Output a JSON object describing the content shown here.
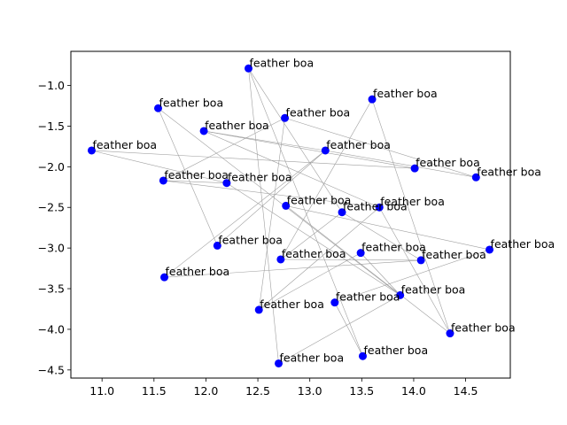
{
  "chart_data": {
    "type": "scatter",
    "title": "",
    "xlabel": "",
    "ylabel": "",
    "xlim": [
      10.7,
      14.93
    ],
    "ylim": [
      -4.6,
      -0.58
    ],
    "x_ticks": [
      11.0,
      11.5,
      12.0,
      12.5,
      13.0,
      13.5,
      14.0,
      14.5
    ],
    "y_ticks": [
      -1.0,
      -1.5,
      -2.0,
      -2.5,
      -3.0,
      -3.5,
      -4.0,
      -4.5
    ],
    "x_tick_labels": [
      "11.0",
      "11.5",
      "12.0",
      "12.5",
      "13.0",
      "13.5",
      "14.0",
      "14.5"
    ],
    "y_tick_labels": [
      "−1.0",
      "−1.5",
      "−2.0",
      "−2.5",
      "−3.0",
      "−3.5",
      "−4.0",
      "−4.5"
    ],
    "point_color": "#0000ff",
    "edge_color": "#a0a0a0",
    "grid": false,
    "points": [
      {
        "x": 12.41,
        "y": -0.79,
        "label": "feather boa"
      },
      {
        "x": 11.54,
        "y": -1.28,
        "label": "feather boa"
      },
      {
        "x": 13.6,
        "y": -1.17,
        "label": "feather boa"
      },
      {
        "x": 12.76,
        "y": -1.4,
        "label": "feather boa"
      },
      {
        "x": 11.98,
        "y": -1.56,
        "label": "feather boa"
      },
      {
        "x": 13.15,
        "y": -1.8,
        "label": "feather boa"
      },
      {
        "x": 10.9,
        "y": -1.8,
        "label": "feather boa"
      },
      {
        "x": 14.01,
        "y": -2.02,
        "label": "feather boa"
      },
      {
        "x": 14.6,
        "y": -2.13,
        "label": "feather boa"
      },
      {
        "x": 11.59,
        "y": -2.17,
        "label": "feather boa"
      },
      {
        "x": 12.2,
        "y": -2.2,
        "label": "feather boa"
      },
      {
        "x": 12.77,
        "y": -2.48,
        "label": "feather boa"
      },
      {
        "x": 13.67,
        "y": -2.5,
        "label": "feather boa"
      },
      {
        "x": 13.31,
        "y": -2.56,
        "label": "feather boa"
      },
      {
        "x": 12.11,
        "y": -2.97,
        "label": "feather boa"
      },
      {
        "x": 14.73,
        "y": -3.02,
        "label": "feather boa"
      },
      {
        "x": 13.49,
        "y": -3.06,
        "label": "feather boa"
      },
      {
        "x": 12.72,
        "y": -3.14,
        "label": "feather boa"
      },
      {
        "x": 14.07,
        "y": -3.15,
        "label": "feather boa"
      },
      {
        "x": 11.6,
        "y": -3.36,
        "label": "feather boa"
      },
      {
        "x": 13.87,
        "y": -3.58,
        "label": "feather boa"
      },
      {
        "x": 13.24,
        "y": -3.67,
        "label": "feather boa"
      },
      {
        "x": 12.51,
        "y": -3.76,
        "label": "feather boa"
      },
      {
        "x": 14.35,
        "y": -4.05,
        "label": "feather boa"
      },
      {
        "x": 13.51,
        "y": -4.33,
        "label": "feather boa"
      },
      {
        "x": 12.7,
        "y": -4.42,
        "label": "feather boa"
      }
    ],
    "edges": [
      [
        0,
        24
      ],
      [
        0,
        25
      ],
      [
        0,
        13
      ],
      [
        1,
        14
      ],
      [
        1,
        20
      ],
      [
        2,
        23
      ],
      [
        2,
        17
      ],
      [
        3,
        22
      ],
      [
        3,
        8
      ],
      [
        3,
        9
      ],
      [
        4,
        7
      ],
      [
        4,
        12
      ],
      [
        5,
        19
      ],
      [
        5,
        4
      ],
      [
        6,
        7
      ],
      [
        6,
        10
      ],
      [
        8,
        5
      ],
      [
        9,
        12
      ],
      [
        9,
        10
      ],
      [
        10,
        20
      ],
      [
        11,
        23
      ],
      [
        12,
        22
      ],
      [
        12,
        23
      ],
      [
        13,
        18
      ],
      [
        14,
        5
      ],
      [
        15,
        21
      ],
      [
        15,
        11
      ],
      [
        16,
        20
      ],
      [
        17,
        18
      ],
      [
        17,
        13
      ],
      [
        19,
        18
      ],
      [
        21,
        24
      ],
      [
        22,
        16
      ],
      [
        25,
        20
      ]
    ]
  }
}
